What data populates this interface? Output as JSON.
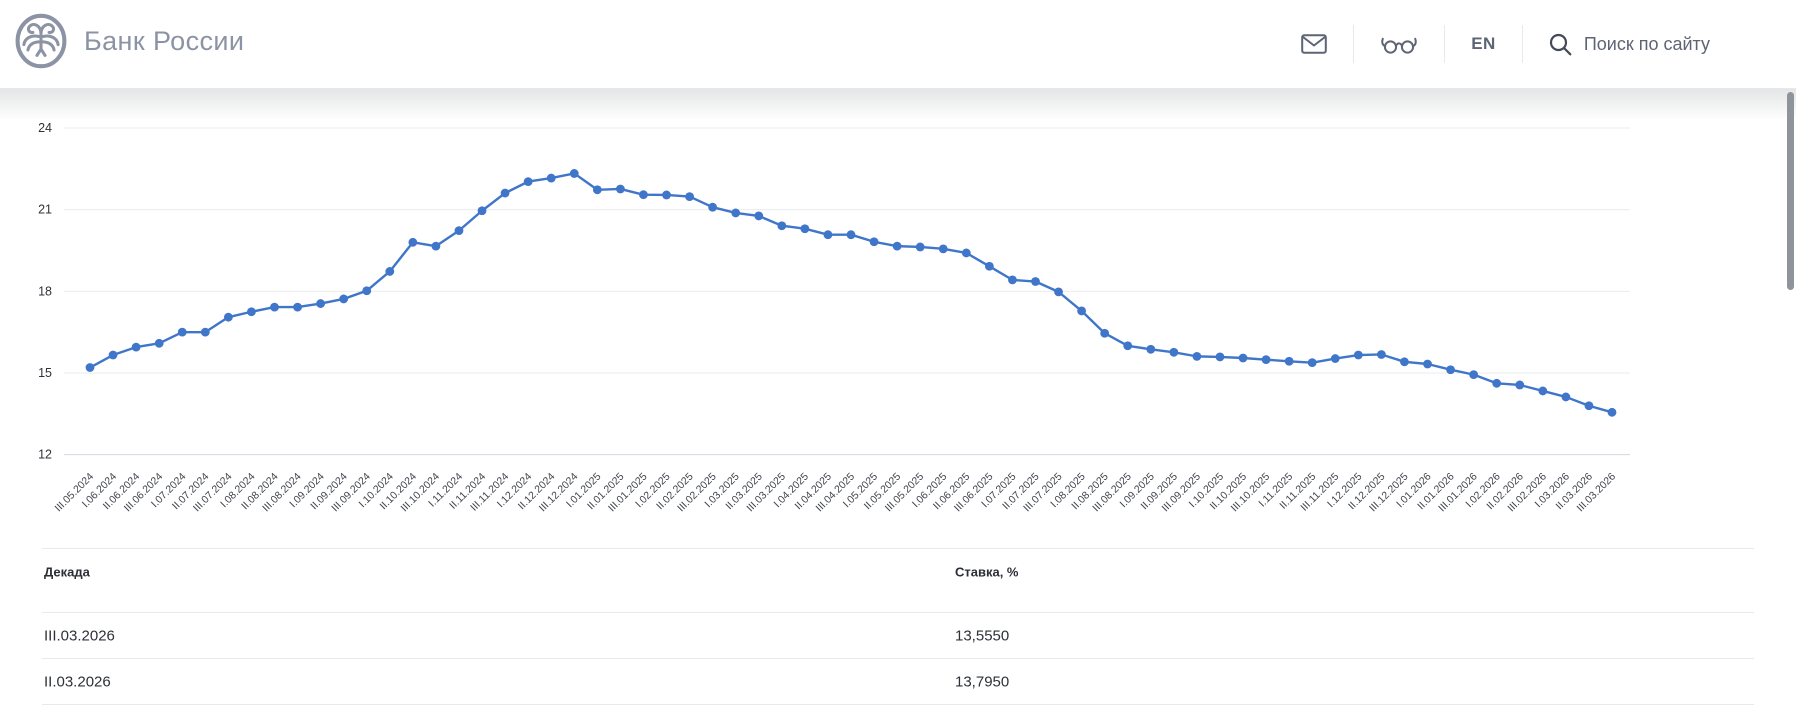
{
  "header": {
    "logo_text": "Банк России",
    "lang_label": "EN",
    "search_label": "Поиск по сайту"
  },
  "chart_data": {
    "type": "line",
    "title": "",
    "xlabel": "",
    "ylabel": "Ставка, %",
    "legend_position": "none",
    "grid": true,
    "line_color": "#3f76c9",
    "marker": "circle",
    "ylim": [
      12,
      24.6
    ],
    "yticks": [
      12,
      15,
      18,
      21,
      24
    ],
    "x": [
      "III.05.2024",
      "I.06.2024",
      "II.06.2024",
      "III.06.2024",
      "I.07.2024",
      "II.07.2024",
      "III.07.2024",
      "I.08.2024",
      "II.08.2024",
      "III.08.2024",
      "I.09.2024",
      "II.09.2024",
      "III.09.2024",
      "I.10.2024",
      "II.10.2024",
      "III.10.2024",
      "I.11.2024",
      "II.11.2024",
      "III.11.2024",
      "I.12.2024",
      "II.12.2024",
      "III.12.2024",
      "I.01.2025",
      "II.01.2025",
      "III.01.2025",
      "I.02.2025",
      "II.02.2025",
      "III.02.2025",
      "I.03.2025",
      "II.03.2025",
      "III.03.2025",
      "I.04.2025",
      "II.04.2025",
      "III.04.2025",
      "I.05.2025",
      "II.05.2025",
      "III.05.2025",
      "I.06.2025",
      "II.06.2025",
      "III.06.2025",
      "I.07.2025",
      "II.07.2025",
      "III.07.2025",
      "I.08.2025",
      "II.08.2025",
      "III.08.2025",
      "I.09.2025",
      "II.09.2025",
      "III.09.2025",
      "I.10.2025",
      "II.10.2025",
      "III.10.2025",
      "I.11.2025",
      "II.11.2025",
      "III.11.2025",
      "I.12.2025",
      "II.12.2025",
      "III.12.2025",
      "I.01.2026",
      "II.01.2026",
      "III.01.2026",
      "I.02.2026",
      "II.02.2026",
      "III.02.2026",
      "I.03.2026",
      "II.03.2026",
      "III.03.2026"
    ],
    "values": [
      15.2,
      15.66,
      15.95,
      16.09,
      16.5,
      16.5,
      17.05,
      17.25,
      17.42,
      17.42,
      17.55,
      17.72,
      18.02,
      18.73,
      19.8,
      19.66,
      20.23,
      20.96,
      21.61,
      22.03,
      22.16,
      22.33,
      21.73,
      21.76,
      21.55,
      21.54,
      21.48,
      21.09,
      20.88,
      20.77,
      20.41,
      20.3,
      20.08,
      20.08,
      19.82,
      19.66,
      19.63,
      19.56,
      19.41,
      18.92,
      18.42,
      18.36,
      17.98,
      17.28,
      16.46,
      16.0,
      15.87,
      15.76,
      15.61,
      15.59,
      15.55,
      15.49,
      15.43,
      15.38,
      15.53,
      15.66,
      15.68,
      15.41,
      15.33,
      15.12,
      14.94,
      14.62,
      14.56,
      14.34,
      14.12,
      13.795,
      13.555
    ]
  },
  "table": {
    "columns": [
      "Декада",
      "Ставка, %"
    ],
    "rows": [
      {
        "decade": "III.03.2026",
        "rate": "13,5550"
      },
      {
        "decade": "II.03.2026",
        "rate": "13,7950"
      }
    ]
  }
}
